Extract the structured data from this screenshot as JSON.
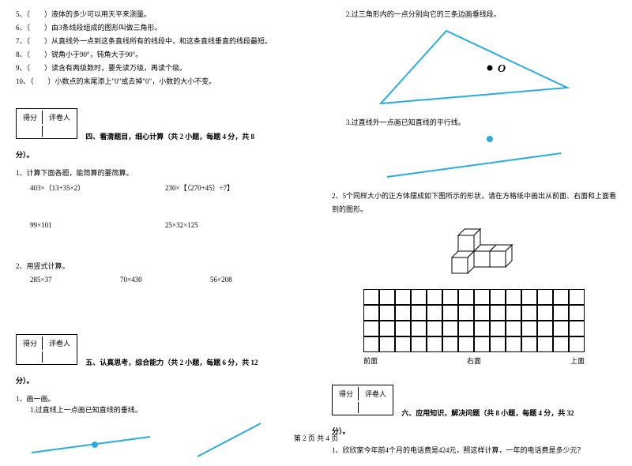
{
  "left": {
    "tf": [
      "5、（　　）液体的多少可以用天平来测量。",
      "6、（　　）由3条线段组成的图形叫做三角形。",
      "7、（　　）从直线外一点到这条直线所有的线段中，和这条直线垂直的线段最短。",
      "8、（　　）锐角小于90°，钝角大于90°。",
      "9、（　　）读含有两级数时，要先读万级，再读个级。",
      "10、（　　）小数点的末尾添上\"0\"或去掉\"0\"，小数的大小不变。"
    ],
    "score_labels": {
      "a": "得分",
      "b": "评卷人"
    },
    "section4_title": "四、看清题目，细心计算（共 2 小题，每题 4 分，共 8",
    "fen_close": "分）。",
    "q1_label": "1、计算下面各题，能简算的要简算。",
    "q1_a": "403×（13+35×2）",
    "q1_b": "230×【（270+45）÷7】",
    "q1_c": "99×101",
    "q1_d": "25×32×125",
    "q2_label": "2、用竖式计算。",
    "q2_a": "285×37",
    "q2_b": "70×430",
    "q2_c": "56×208",
    "section5_title": "五、认真思考，综合能力（共 2 小题，每题 6 分，共 12",
    "q5_1": "1、画一画。",
    "q5_1a": "1.过直线上一点画已知直线的垂线。",
    "line_color": "#29abe2"
  },
  "right": {
    "q5_1b": "2.过三角形内的一点分别向它的三条边画垂线段。",
    "triangle_color": "#29abe2",
    "dot_label": "O",
    "q5_1c": "3.过直线外一点画已知直线的平行线。",
    "q5_2": "2、5个同样大小的正方体摆成如下图所示的形状，请在方格纸中画出从前面、右面和上面看到的图形。",
    "view_labels": {
      "front": "前面",
      "right": "右面",
      "top": "上面"
    },
    "section6_title": "六、应用知识，解决问题（共 8 小题，每题 4 分，共 32",
    "fen_close": "分）。",
    "score_labels": {
      "a": "得分",
      "b": "评卷人"
    },
    "q6_1": "1、欣欣家今年前4个月的电话费是424元，照这样计算，一年的电话费是多少元？",
    "grid": {
      "rows": 4,
      "cols": 14
    }
  },
  "footer": "第 2 页 共 4 页"
}
